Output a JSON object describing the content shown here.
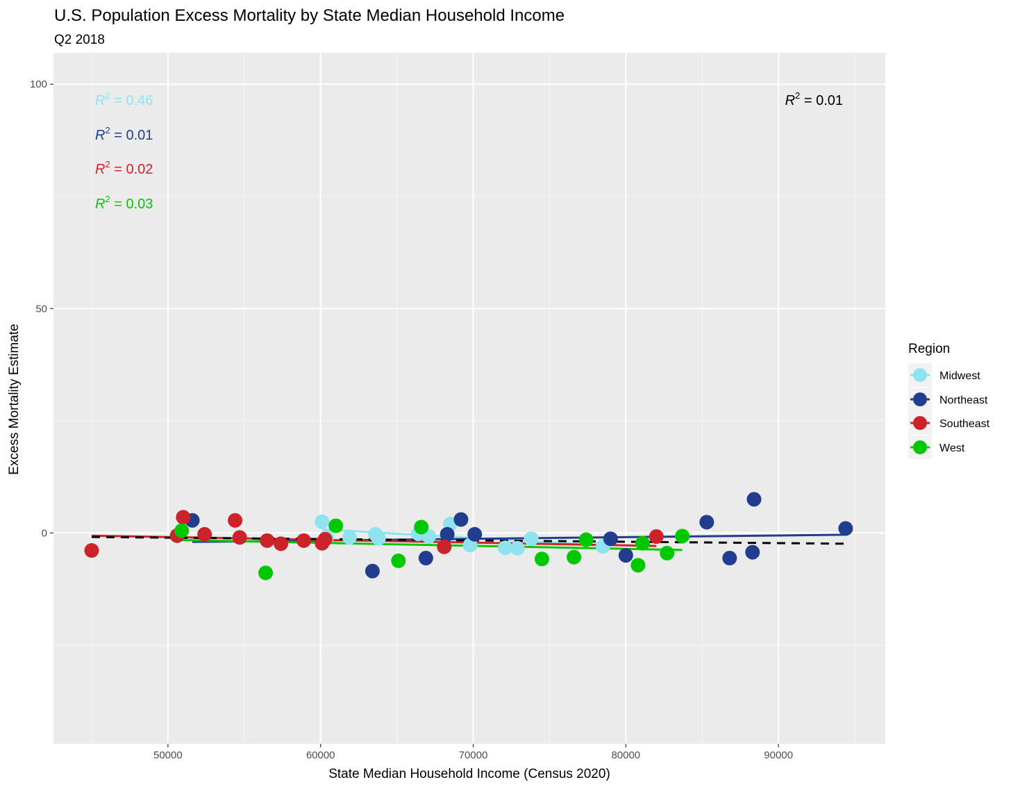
{
  "chart_data": {
    "type": "scatter",
    "title": "U.S. Population Excess Mortality by State Median Household Income",
    "subtitle": "Q2 2018",
    "xlabel": "State Median Household Income (Census 2020)",
    "ylabel": "Excess Mortality Estimate",
    "xlim": [
      42500,
      97000
    ],
    "ylim": [
      -47,
      107
    ],
    "xticks": [
      50000,
      60000,
      70000,
      80000,
      90000
    ],
    "yticks": [
      0,
      50,
      100
    ],
    "grid": true,
    "legend_title": "Region",
    "legend_position": "right",
    "series": [
      {
        "name": "Midwest",
        "color": "#8fe3ee",
        "points": [
          [
            60100,
            2.5
          ],
          [
            60400,
            -1.0
          ],
          [
            61900,
            -1.0
          ],
          [
            63600,
            -0.3
          ],
          [
            63800,
            -1.2
          ],
          [
            66400,
            -0.2
          ],
          [
            67100,
            -0.8
          ],
          [
            68500,
            2.0
          ],
          [
            69800,
            -2.7
          ],
          [
            72100,
            -3.3
          ],
          [
            72900,
            -3.4
          ],
          [
            73800,
            -1.3
          ],
          [
            78500,
            -3.0
          ]
        ],
        "fit": [
          [
            60100,
            0.8
          ],
          [
            78500,
            -2.8
          ]
        ],
        "r2_label": "= 0.46"
      },
      {
        "name": "Northeast",
        "color": "#233d8e",
        "points": [
          [
            51600,
            2.8
          ],
          [
            63400,
            -8.5
          ],
          [
            66900,
            -5.6
          ],
          [
            68300,
            -0.3
          ],
          [
            69200,
            3.0
          ],
          [
            70100,
            -0.3
          ],
          [
            79000,
            -1.3
          ],
          [
            80000,
            -5.0
          ],
          [
            85300,
            2.4
          ],
          [
            86800,
            -5.6
          ],
          [
            88300,
            -4.3
          ],
          [
            88400,
            7.5
          ],
          [
            94400,
            1.0
          ]
        ],
        "fit": [
          [
            51600,
            -2.0
          ],
          [
            94400,
            -0.4
          ]
        ],
        "r2_label": "= 0.01"
      },
      {
        "name": "Southeast",
        "color": "#cc2229",
        "points": [
          [
            45000,
            -3.9
          ],
          [
            50600,
            -0.6
          ],
          [
            51000,
            3.5
          ],
          [
            52400,
            -0.3
          ],
          [
            54400,
            2.8
          ],
          [
            54700,
            -1.0
          ],
          [
            56500,
            -1.7
          ],
          [
            57400,
            -2.4
          ],
          [
            58900,
            -1.7
          ],
          [
            60100,
            -2.3
          ],
          [
            60300,
            -1.4
          ],
          [
            68100,
            -3.1
          ],
          [
            82000,
            -0.8
          ]
        ],
        "fit": [
          [
            45000,
            -0.6
          ],
          [
            82000,
            -2.9
          ]
        ],
        "r2_label": "= 0.02"
      },
      {
        "name": "West",
        "color": "#00c800",
        "points": [
          [
            50900,
            0.5
          ],
          [
            56400,
            -8.9
          ],
          [
            61000,
            1.6
          ],
          [
            65100,
            -6.2
          ],
          [
            66600,
            1.3
          ],
          [
            74500,
            -5.8
          ],
          [
            76600,
            -5.4
          ],
          [
            77400,
            -1.5
          ],
          [
            80800,
            -7.2
          ],
          [
            81100,
            -2.3
          ],
          [
            82700,
            -4.5
          ],
          [
            83700,
            -0.7
          ]
        ],
        "fit": [
          [
            50900,
            -1.6
          ],
          [
            83700,
            -3.8
          ]
        ],
        "r2_label": "= 0.03"
      }
    ],
    "overall": {
      "color": "#000000",
      "fit": [
        [
          45000,
          -0.9
        ],
        [
          94400,
          -2.4
        ]
      ],
      "r2_label": "= 0.01"
    }
  }
}
